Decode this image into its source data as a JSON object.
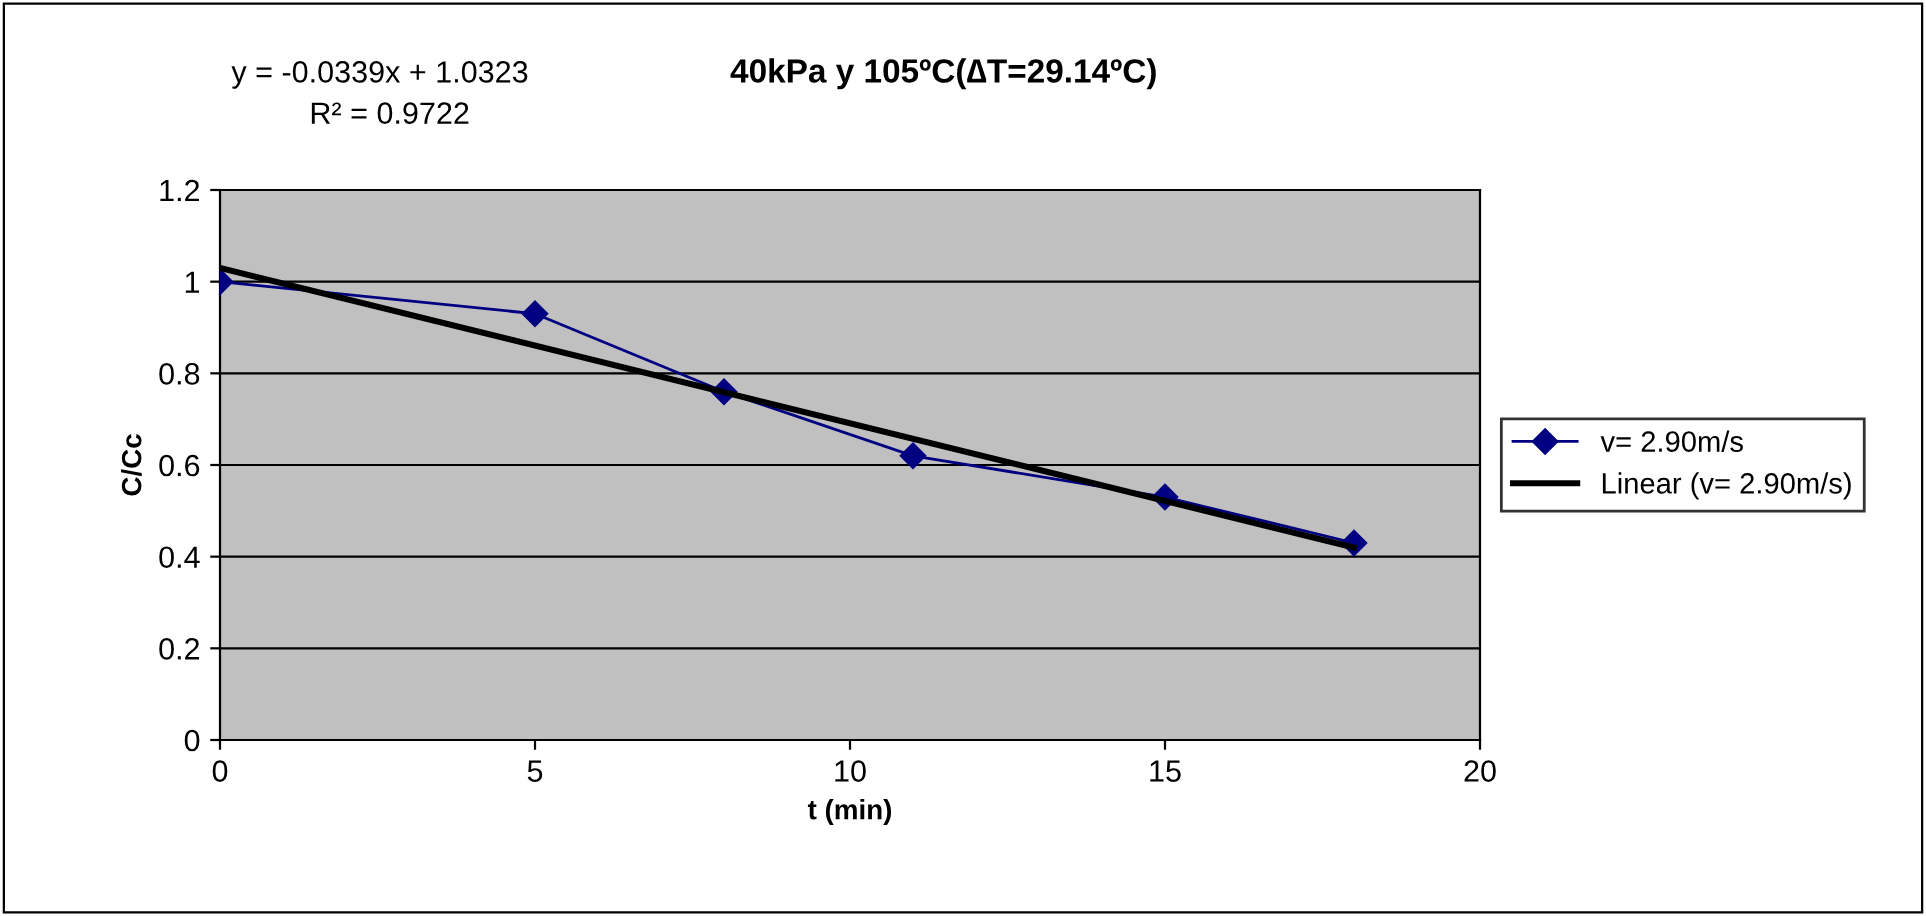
{
  "chart_data": {
    "type": "line",
    "title": "40kPa y 105ºC(∆T=29.14ºC)",
    "xlabel": "t (min)",
    "ylabel": "C/Cc",
    "annotations": [
      "y = -0.0339x + 1.0323",
      "R² = 0.9722"
    ],
    "x": [
      0,
      5,
      8,
      11,
      15,
      18
    ],
    "series": [
      {
        "name": "v= 2.90m/s",
        "color": "#000080",
        "values": [
          1.0,
          0.93,
          0.76,
          0.62,
          0.53,
          0.43
        ],
        "marker": "diamond"
      },
      {
        "name": "Linear (v= 2.90m/s)",
        "type": "line",
        "color": "#000000",
        "x": [
          0,
          18
        ],
        "values": [
          1.03,
          0.42
        ],
        "marker": "none"
      }
    ],
    "xlim": [
      0,
      20
    ],
    "xticks": [
      0,
      5,
      10,
      15,
      20
    ],
    "ylim": [
      0,
      1.2
    ],
    "yticks": [
      0,
      0.2,
      0.4,
      0.6,
      0.8,
      1,
      1.2
    ],
    "grid": "y",
    "legend": "right",
    "line_style": "solid"
  }
}
